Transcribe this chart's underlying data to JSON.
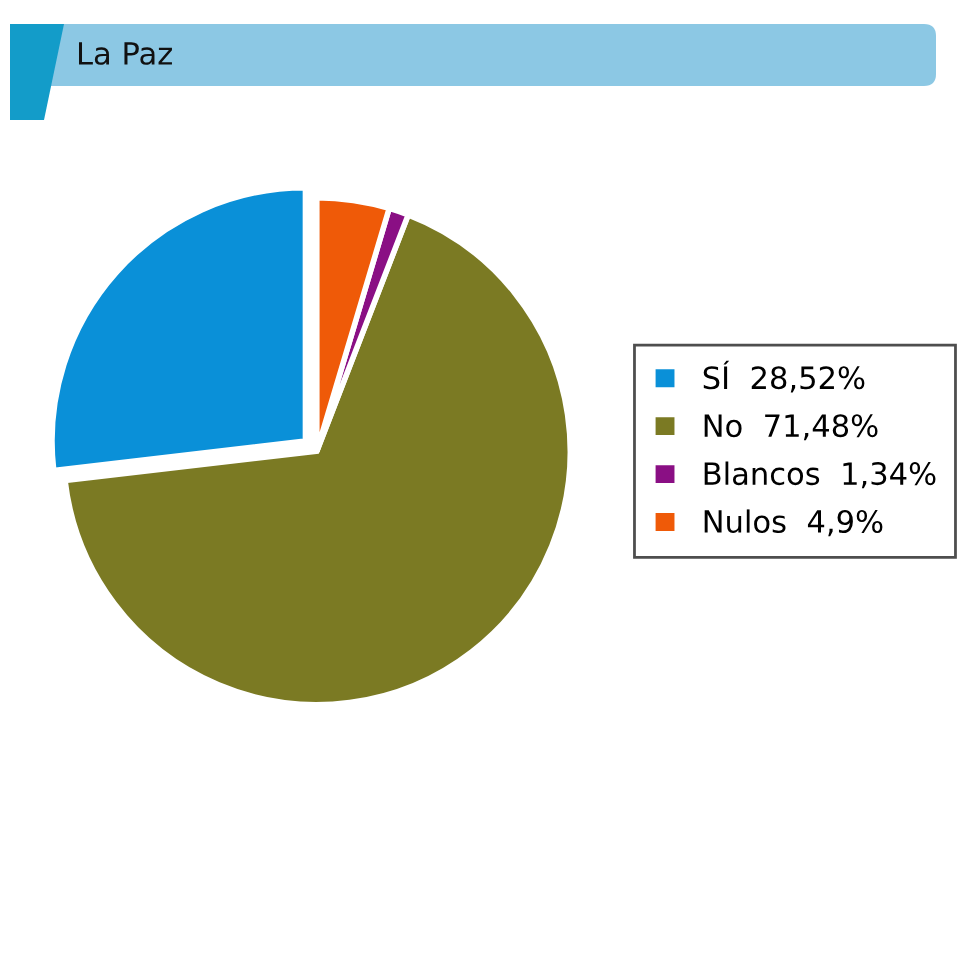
{
  "chart_data": {
    "type": "pie",
    "title": "La Paz",
    "categories": [
      "SÍ",
      "No",
      "Blancos",
      "Nulos"
    ],
    "values": [
      28.52,
      71.48,
      1.34,
      4.9
    ],
    "value_labels": [
      "28,52%",
      "71,48%",
      "1,34%",
      "4,9%"
    ],
    "colors": [
      "#0a90d8",
      "#7b7a23",
      "#8a0f84",
      "#ef5a08"
    ],
    "legend": "right"
  }
}
